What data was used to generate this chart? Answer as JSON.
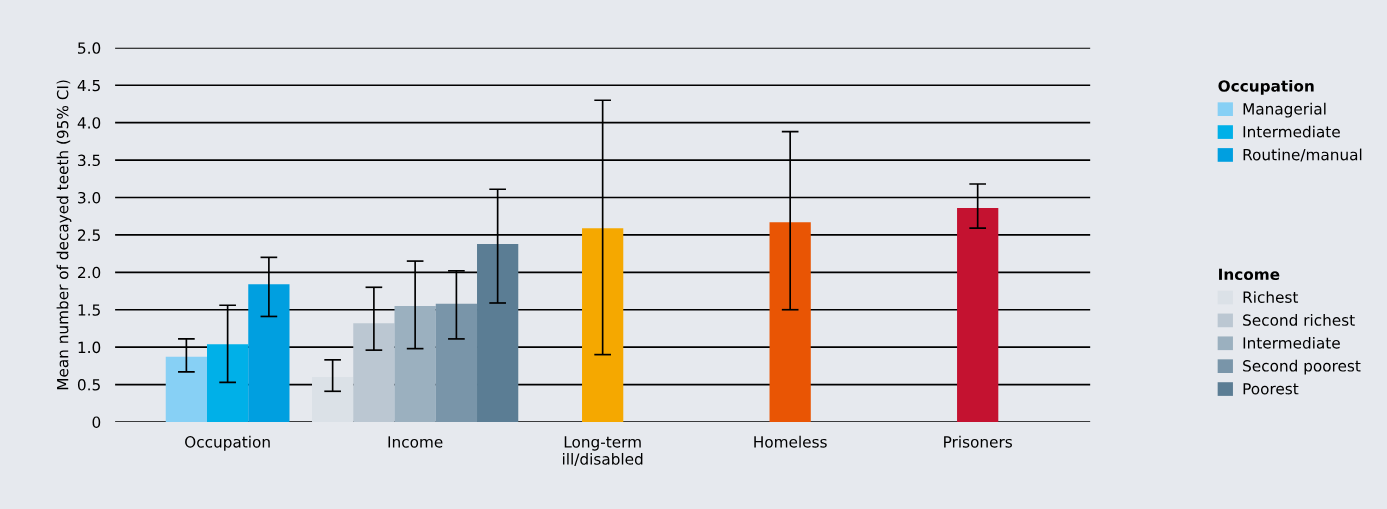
{
  "chart_data": {
    "type": "bar",
    "ylabel": "Mean number of decayed teeth (95% CI)",
    "categories": [
      "Occupation",
      "Income",
      "Long-term\nill/disabled",
      "Homeless",
      "Prisoners"
    ],
    "series": [
      {
        "name": "Managerial",
        "color": "#87d0f5",
        "values": [
          0.87,
          null,
          null,
          null,
          null
        ],
        "errors": [
          [
            0.67,
            1.11
          ],
          null,
          null,
          null,
          null
        ]
      },
      {
        "name": "Intermediate",
        "color": "#00b0e8",
        "values": [
          1.04,
          null,
          null,
          null,
          null
        ],
        "errors": [
          [
            0.53,
            1.56
          ],
          null,
          null,
          null,
          null
        ]
      },
      {
        "name": "Routine/manual",
        "color": "#009fe0",
        "values": [
          1.84,
          null,
          null,
          null,
          null
        ],
        "errors": [
          [
            1.41,
            2.2
          ],
          null,
          null,
          null,
          null
        ]
      },
      {
        "name": "Richest",
        "color": "#dbe1e7",
        "values": [
          null,
          0.6,
          null,
          null,
          null
        ],
        "errors": [
          null,
          [
            0.41,
            0.83
          ],
          null,
          null,
          null
        ]
      },
      {
        "name": "Second richest",
        "color": "#bbc7d2",
        "values": [
          null,
          1.32,
          null,
          null,
          null
        ],
        "errors": [
          null,
          [
            0.96,
            1.8
          ],
          null,
          null,
          null
        ]
      },
      {
        "name": "Intermediate",
        "color": "#9bb0bf",
        "values": [
          null,
          1.55,
          null,
          null,
          null
        ],
        "errors": [
          null,
          [
            0.98,
            2.15
          ],
          null,
          null,
          null
        ]
      },
      {
        "name": "Second poorest",
        "color": "#7995a9",
        "values": [
          null,
          1.58,
          null,
          null,
          null
        ],
        "errors": [
          null,
          [
            1.11,
            2.02
          ],
          null,
          null,
          null
        ]
      },
      {
        "name": "Poorest",
        "color": "#5b7d94",
        "values": [
          null,
          2.38,
          null,
          null,
          null
        ],
        "errors": [
          null,
          [
            1.59,
            3.11
          ],
          null,
          null,
          null
        ]
      },
      {
        "color": "#f5a800",
        "values": [
          null,
          null,
          2.59,
          null,
          null
        ],
        "errors": [
          null,
          null,
          [
            0.9,
            4.3
          ],
          null,
          null
        ]
      },
      {
        "color": "#e95504",
        "values": [
          null,
          null,
          null,
          2.67,
          null
        ],
        "errors": [
          null,
          null,
          null,
          [
            1.5,
            3.88
          ],
          null
        ]
      },
      {
        "color": "#c41230",
        "values": [
          null,
          null,
          null,
          null,
          2.86
        ],
        "errors": [
          null,
          null,
          null,
          null,
          [
            2.59,
            3.18
          ]
        ]
      }
    ],
    "ylim": [
      0,
      5
    ],
    "yticks": [
      0,
      0.5,
      {
        "value": 1,
        "label": "1.0"
      },
      1.5,
      {
        "value": 2,
        "label": "2.0"
      },
      2.5,
      {
        "value": 3,
        "label": "3.0"
      },
      3.5,
      {
        "value": 4,
        "label": "4.0"
      },
      4.5,
      {
        "value": 5,
        "label": "5.0"
      }
    ],
    "grid": "y",
    "legend": "right"
  }
}
